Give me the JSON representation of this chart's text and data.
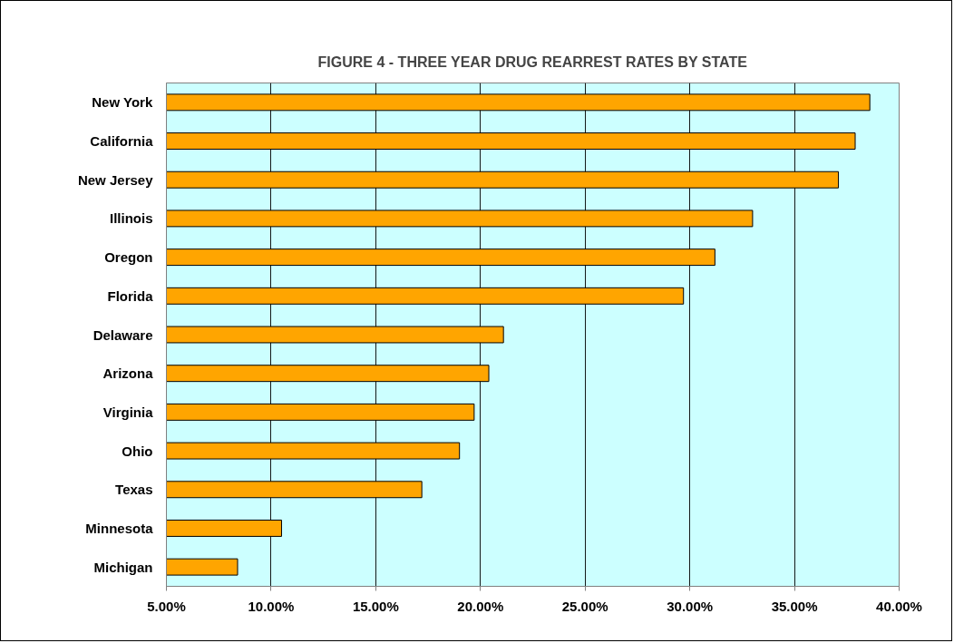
{
  "chart_data": {
    "type": "bar",
    "orientation": "horizontal",
    "title": "FIGURE 4 - THREE YEAR DRUG REARREST RATES BY STATE",
    "categories": [
      "New York",
      "California",
      "New Jersey",
      "Illinois",
      "Oregon",
      "Florida",
      "Delaware",
      "Arizona",
      "Virginia",
      "Ohio",
      "Texas",
      "Minnesota",
      "Michigan"
    ],
    "values": [
      38.6,
      37.9,
      37.1,
      33.0,
      31.2,
      29.7,
      21.1,
      20.4,
      19.7,
      19.0,
      17.2,
      10.5,
      8.4
    ],
    "color": "#ffa500",
    "xlim": [
      5,
      40
    ],
    "xticks": [
      {
        "value": 5,
        "label": "5.00%"
      },
      {
        "value": 10,
        "label": "10.00%"
      },
      {
        "value": 15,
        "label": "15.00%"
      },
      {
        "value": 20,
        "label": "20.00%"
      },
      {
        "value": 25,
        "label": "25.00%"
      },
      {
        "value": 30,
        "label": "30.00%"
      },
      {
        "value": 35,
        "label": "35.00%"
      },
      {
        "value": 40,
        "label": "40.00%"
      }
    ],
    "grid": "x"
  }
}
